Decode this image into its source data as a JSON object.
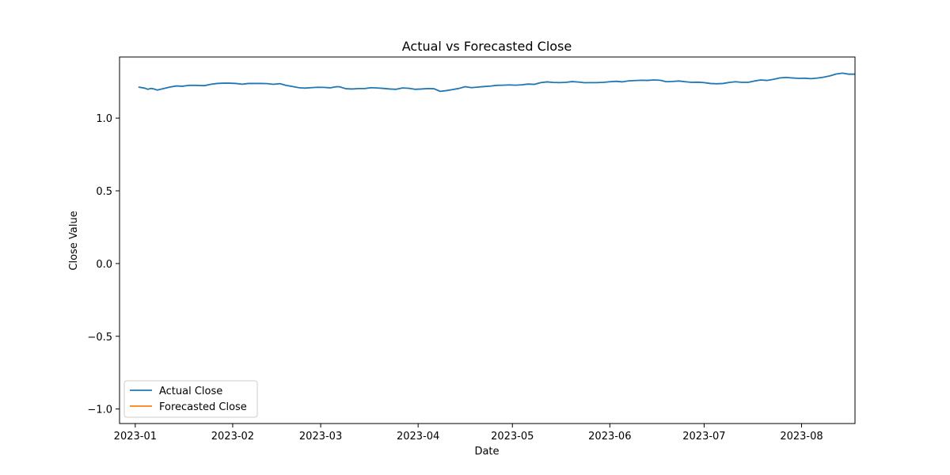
{
  "chart_data": {
    "type": "line",
    "title": "Actual vs Forecasted Close",
    "xlabel": "Date",
    "ylabel": "Close Value",
    "x_type": "date",
    "xlim": [
      "2022-12-27",
      "2023-08-18"
    ],
    "ylim": [
      -1.1,
      1.42
    ],
    "xticks": [
      {
        "date": "2023-01-01",
        "label": "2023-01"
      },
      {
        "date": "2023-02-01",
        "label": "2023-02"
      },
      {
        "date": "2023-03-01",
        "label": "2023-03"
      },
      {
        "date": "2023-04-01",
        "label": "2023-04"
      },
      {
        "date": "2023-05-01",
        "label": "2023-05"
      },
      {
        "date": "2023-06-01",
        "label": "2023-06"
      },
      {
        "date": "2023-07-01",
        "label": "2023-07"
      },
      {
        "date": "2023-08-01",
        "label": "2023-08"
      }
    ],
    "yticks": [
      {
        "value": -1.0,
        "label": "−1.0"
      },
      {
        "value": -0.5,
        "label": "−0.5"
      },
      {
        "value": 0.0,
        "label": "0.0"
      },
      {
        "value": 0.5,
        "label": "0.5"
      },
      {
        "value": 1.0,
        "label": "1.0"
      }
    ],
    "grid": false,
    "legend_position": "lower-left",
    "series": [
      {
        "name": "Actual Close",
        "color": "#1f77b4",
        "points": [
          [
            "2023-01-02",
            1.213
          ],
          [
            "2023-01-04",
            1.206
          ],
          [
            "2023-01-05",
            1.198
          ],
          [
            "2023-01-06",
            1.204
          ],
          [
            "2023-01-07",
            1.2
          ],
          [
            "2023-01-08",
            1.193
          ],
          [
            "2023-01-10",
            1.203
          ],
          [
            "2023-01-12",
            1.213
          ],
          [
            "2023-01-14",
            1.221
          ],
          [
            "2023-01-16",
            1.219
          ],
          [
            "2023-01-18",
            1.225
          ],
          [
            "2023-01-20",
            1.225
          ],
          [
            "2023-01-23",
            1.223
          ],
          [
            "2023-01-25",
            1.232
          ],
          [
            "2023-01-27",
            1.238
          ],
          [
            "2023-01-29",
            1.24
          ],
          [
            "2023-01-31",
            1.24
          ],
          [
            "2023-02-02",
            1.238
          ],
          [
            "2023-02-04",
            1.233
          ],
          [
            "2023-02-06",
            1.238
          ],
          [
            "2023-02-08",
            1.238
          ],
          [
            "2023-02-10",
            1.238
          ],
          [
            "2023-02-12",
            1.237
          ],
          [
            "2023-02-14",
            1.232
          ],
          [
            "2023-02-16",
            1.237
          ],
          [
            "2023-02-18",
            1.225
          ],
          [
            "2023-02-20",
            1.217
          ],
          [
            "2023-02-22",
            1.209
          ],
          [
            "2023-02-24",
            1.206
          ],
          [
            "2023-02-26",
            1.209
          ],
          [
            "2023-02-28",
            1.212
          ],
          [
            "2023-03-02",
            1.211
          ],
          [
            "2023-03-04",
            1.208
          ],
          [
            "2023-03-06",
            1.216
          ],
          [
            "2023-03-07",
            1.215
          ],
          [
            "2023-03-09",
            1.202
          ],
          [
            "2023-03-11",
            1.2
          ],
          [
            "2023-03-13",
            1.203
          ],
          [
            "2023-03-15",
            1.203
          ],
          [
            "2023-03-17",
            1.209
          ],
          [
            "2023-03-19",
            1.207
          ],
          [
            "2023-03-21",
            1.204
          ],
          [
            "2023-03-23",
            1.2
          ],
          [
            "2023-03-25",
            1.198
          ],
          [
            "2023-03-27",
            1.207
          ],
          [
            "2023-03-29",
            1.205
          ],
          [
            "2023-03-31",
            1.198
          ],
          [
            "2023-04-02",
            1.2
          ],
          [
            "2023-04-04",
            1.203
          ],
          [
            "2023-04-06",
            1.202
          ],
          [
            "2023-04-08",
            1.184
          ],
          [
            "2023-04-10",
            1.189
          ],
          [
            "2023-04-12",
            1.196
          ],
          [
            "2023-04-14",
            1.204
          ],
          [
            "2023-04-16",
            1.216
          ],
          [
            "2023-04-18",
            1.209
          ],
          [
            "2023-04-20",
            1.213
          ],
          [
            "2023-04-22",
            1.217
          ],
          [
            "2023-04-24",
            1.22
          ],
          [
            "2023-04-26",
            1.225
          ],
          [
            "2023-04-28",
            1.226
          ],
          [
            "2023-04-30",
            1.228
          ],
          [
            "2023-05-02",
            1.226
          ],
          [
            "2023-05-04",
            1.229
          ],
          [
            "2023-05-06",
            1.234
          ],
          [
            "2023-05-08",
            1.232
          ],
          [
            "2023-05-10",
            1.244
          ],
          [
            "2023-05-12",
            1.249
          ],
          [
            "2023-05-14",
            1.245
          ],
          [
            "2023-05-16",
            1.244
          ],
          [
            "2023-05-18",
            1.246
          ],
          [
            "2023-05-20",
            1.251
          ],
          [
            "2023-05-22",
            1.248
          ],
          [
            "2023-05-24",
            1.243
          ],
          [
            "2023-05-26",
            1.244
          ],
          [
            "2023-05-28",
            1.244
          ],
          [
            "2023-05-30",
            1.246
          ],
          [
            "2023-06-01",
            1.25
          ],
          [
            "2023-06-03",
            1.253
          ],
          [
            "2023-06-05",
            1.249
          ],
          [
            "2023-06-07",
            1.256
          ],
          [
            "2023-06-09",
            1.258
          ],
          [
            "2023-06-11",
            1.26
          ],
          [
            "2023-06-13",
            1.259
          ],
          [
            "2023-06-15",
            1.262
          ],
          [
            "2023-06-17",
            1.26
          ],
          [
            "2023-06-19",
            1.25
          ],
          [
            "2023-06-21",
            1.252
          ],
          [
            "2023-06-23",
            1.255
          ],
          [
            "2023-06-25",
            1.25
          ],
          [
            "2023-06-27",
            1.246
          ],
          [
            "2023-06-29",
            1.247
          ],
          [
            "2023-07-01",
            1.244
          ],
          [
            "2023-07-03",
            1.238
          ],
          [
            "2023-07-05",
            1.236
          ],
          [
            "2023-07-07",
            1.238
          ],
          [
            "2023-07-09",
            1.245
          ],
          [
            "2023-07-11",
            1.25
          ],
          [
            "2023-07-13",
            1.246
          ],
          [
            "2023-07-15",
            1.246
          ],
          [
            "2023-07-17",
            1.255
          ],
          [
            "2023-07-19",
            1.262
          ],
          [
            "2023-07-21",
            1.259
          ],
          [
            "2023-07-23",
            1.266
          ],
          [
            "2023-07-25",
            1.276
          ],
          [
            "2023-07-27",
            1.28
          ],
          [
            "2023-07-29",
            1.276
          ],
          [
            "2023-07-31",
            1.273
          ],
          [
            "2023-08-02",
            1.274
          ],
          [
            "2023-08-04",
            1.271
          ],
          [
            "2023-08-06",
            1.275
          ],
          [
            "2023-08-08",
            1.281
          ],
          [
            "2023-08-10",
            1.29
          ],
          [
            "2023-08-12",
            1.303
          ],
          [
            "2023-08-14",
            1.309
          ],
          [
            "2023-08-16",
            1.302
          ],
          [
            "2023-08-18",
            1.302
          ],
          [
            "2023-08-20",
            1.29
          ],
          [
            "2023-08-22",
            1.288
          ],
          [
            "2023-08-24",
            1.29
          ]
        ]
      },
      {
        "name": "Forecasted Close",
        "color": "#ff7f0e",
        "points": []
      }
    ]
  }
}
